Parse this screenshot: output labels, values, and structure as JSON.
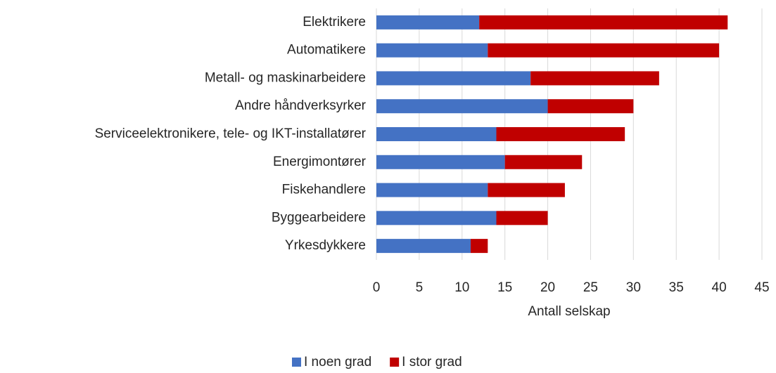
{
  "chart_data": {
    "type": "stacked-bar-horizontal",
    "categories": [
      "Elektrikere",
      "Automatikere",
      "Metall- og maskinarbeidere",
      "Andre håndverksyrker",
      "Serviceelektronikere, tele- og IKT-installatører",
      "Energimontører",
      "Fiskehandlere",
      "Byggearbeidere",
      "Yrkesdykkere"
    ],
    "series": [
      {
        "name": "I noen grad",
        "color": "#4472c4",
        "values": [
          12,
          13,
          18,
          20,
          14,
          15,
          13,
          14,
          11
        ]
      },
      {
        "name": "I stor grad",
        "color": "#c00000",
        "values": [
          29,
          27,
          15,
          10,
          15,
          9,
          9,
          6,
          2
        ]
      }
    ],
    "xlabel": "Antall selskap",
    "xlim": [
      0,
      45
    ],
    "xticks": [
      0,
      5,
      10,
      15,
      20,
      25,
      30,
      35,
      40,
      45
    ],
    "grid": true,
    "legend": "bottom"
  }
}
